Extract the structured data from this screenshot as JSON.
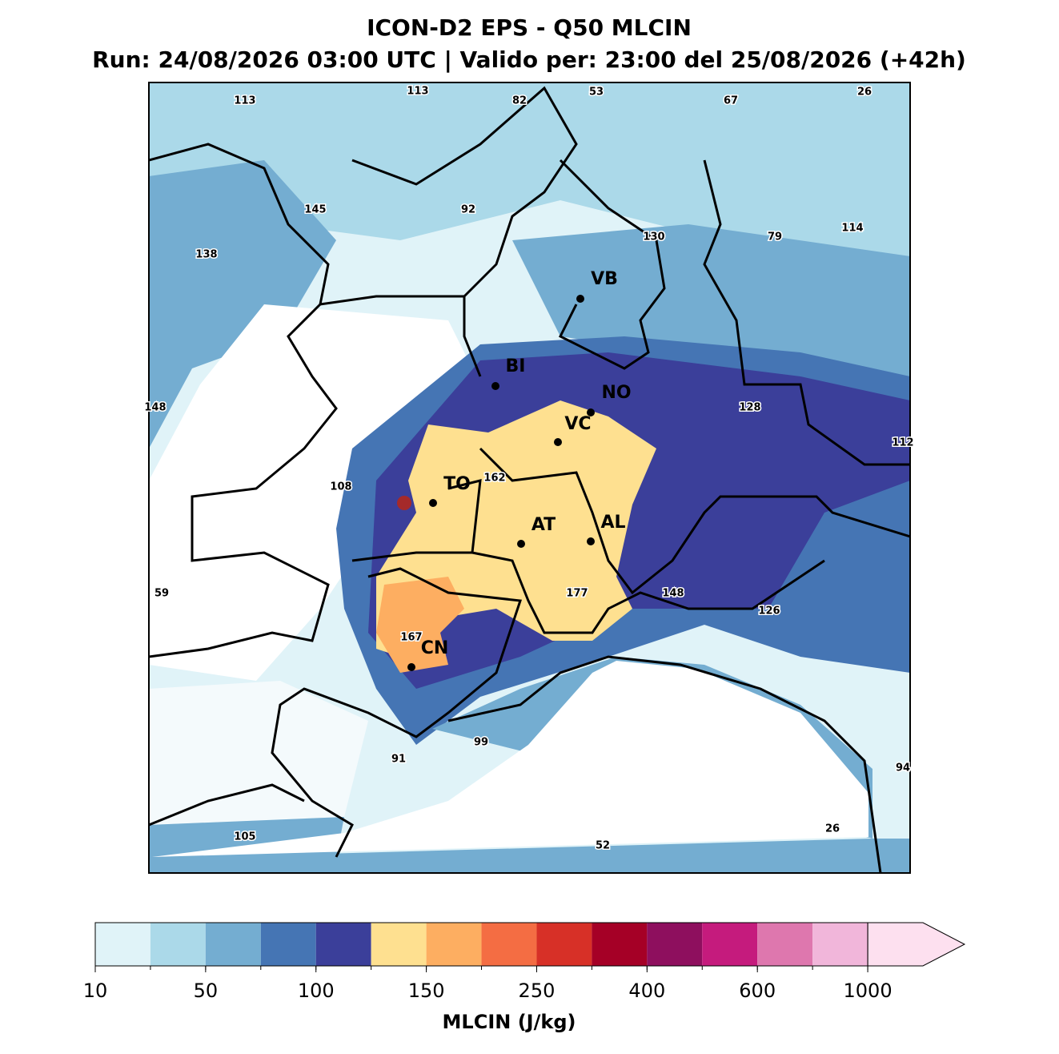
{
  "map": {
    "title": "ICON-D2 EPS - Q50 MLCIN",
    "subtitle": "Run: 24/08/2026 03:00 UTC | Valido per: 23:00 del 25/08/2026 (+42h)",
    "cities": [
      "VB",
      "BI",
      "NO",
      "VC",
      "TO",
      "AT",
      "AL",
      "CN"
    ],
    "value_labels": [
      113,
      113,
      82,
      53,
      67,
      26,
      145,
      92,
      130,
      79,
      114,
      138,
      148,
      128,
      112,
      108,
      162,
      59,
      177,
      148,
      126,
      167,
      99,
      91,
      94,
      26,
      105,
      52
    ],
    "colorbar": {
      "label": "MLCIN (J/kg)",
      "colors": [
        "#e0f3f8",
        "#abd9e9",
        "#74add1",
        "#4575b4",
        "#3b3f9a",
        "#fee090",
        "#fdae61",
        "#f46d43",
        "#d73027",
        "#a50026",
        "#8e0f5e",
        "#c51b7d",
        "#de77ae",
        "#f1b6da",
        "#fde0ef"
      ],
      "ticks": [
        10,
        50,
        100,
        150,
        250,
        400,
        600,
        1000
      ]
    }
  }
}
